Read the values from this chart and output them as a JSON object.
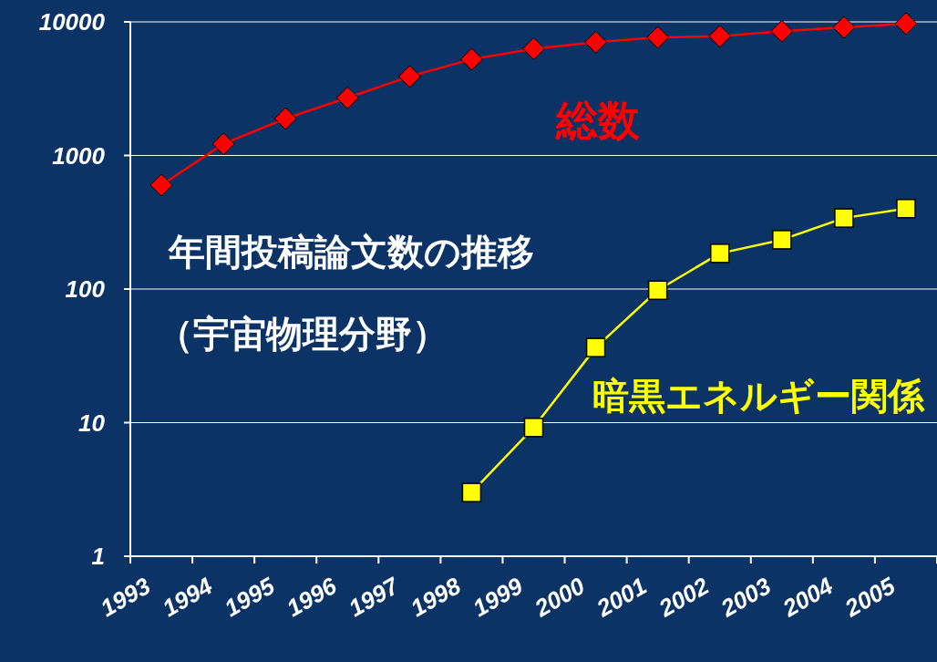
{
  "chart_data": {
    "type": "line",
    "title": "年間投稿論文数の推移",
    "subtitle": "（宇宙物理分野）",
    "categories": [
      "1993",
      "1994",
      "1995",
      "1996",
      "1997",
      "1998",
      "1999",
      "2000",
      "2001",
      "2002",
      "2003",
      "2004",
      "2005"
    ],
    "series": [
      {
        "name": "総数",
        "color": "#ff0000",
        "marker": "diamond",
        "values": [
          600,
          1220,
          1890,
          2700,
          3900,
          5250,
          6300,
          7050,
          7650,
          7800,
          8500,
          9100,
          9700
        ]
      },
      {
        "name": "暗黒エネルギー関係",
        "color": "#ffff00",
        "marker": "square",
        "values": [
          null,
          null,
          null,
          null,
          null,
          3.0,
          9.2,
          36.5,
          98,
          185,
          234,
          340,
          400
        ]
      }
    ],
    "log": "y",
    "ylim": [
      1,
      10000
    ],
    "yticks": [
      1,
      10,
      100,
      1000,
      10000
    ],
    "grid": "y"
  }
}
